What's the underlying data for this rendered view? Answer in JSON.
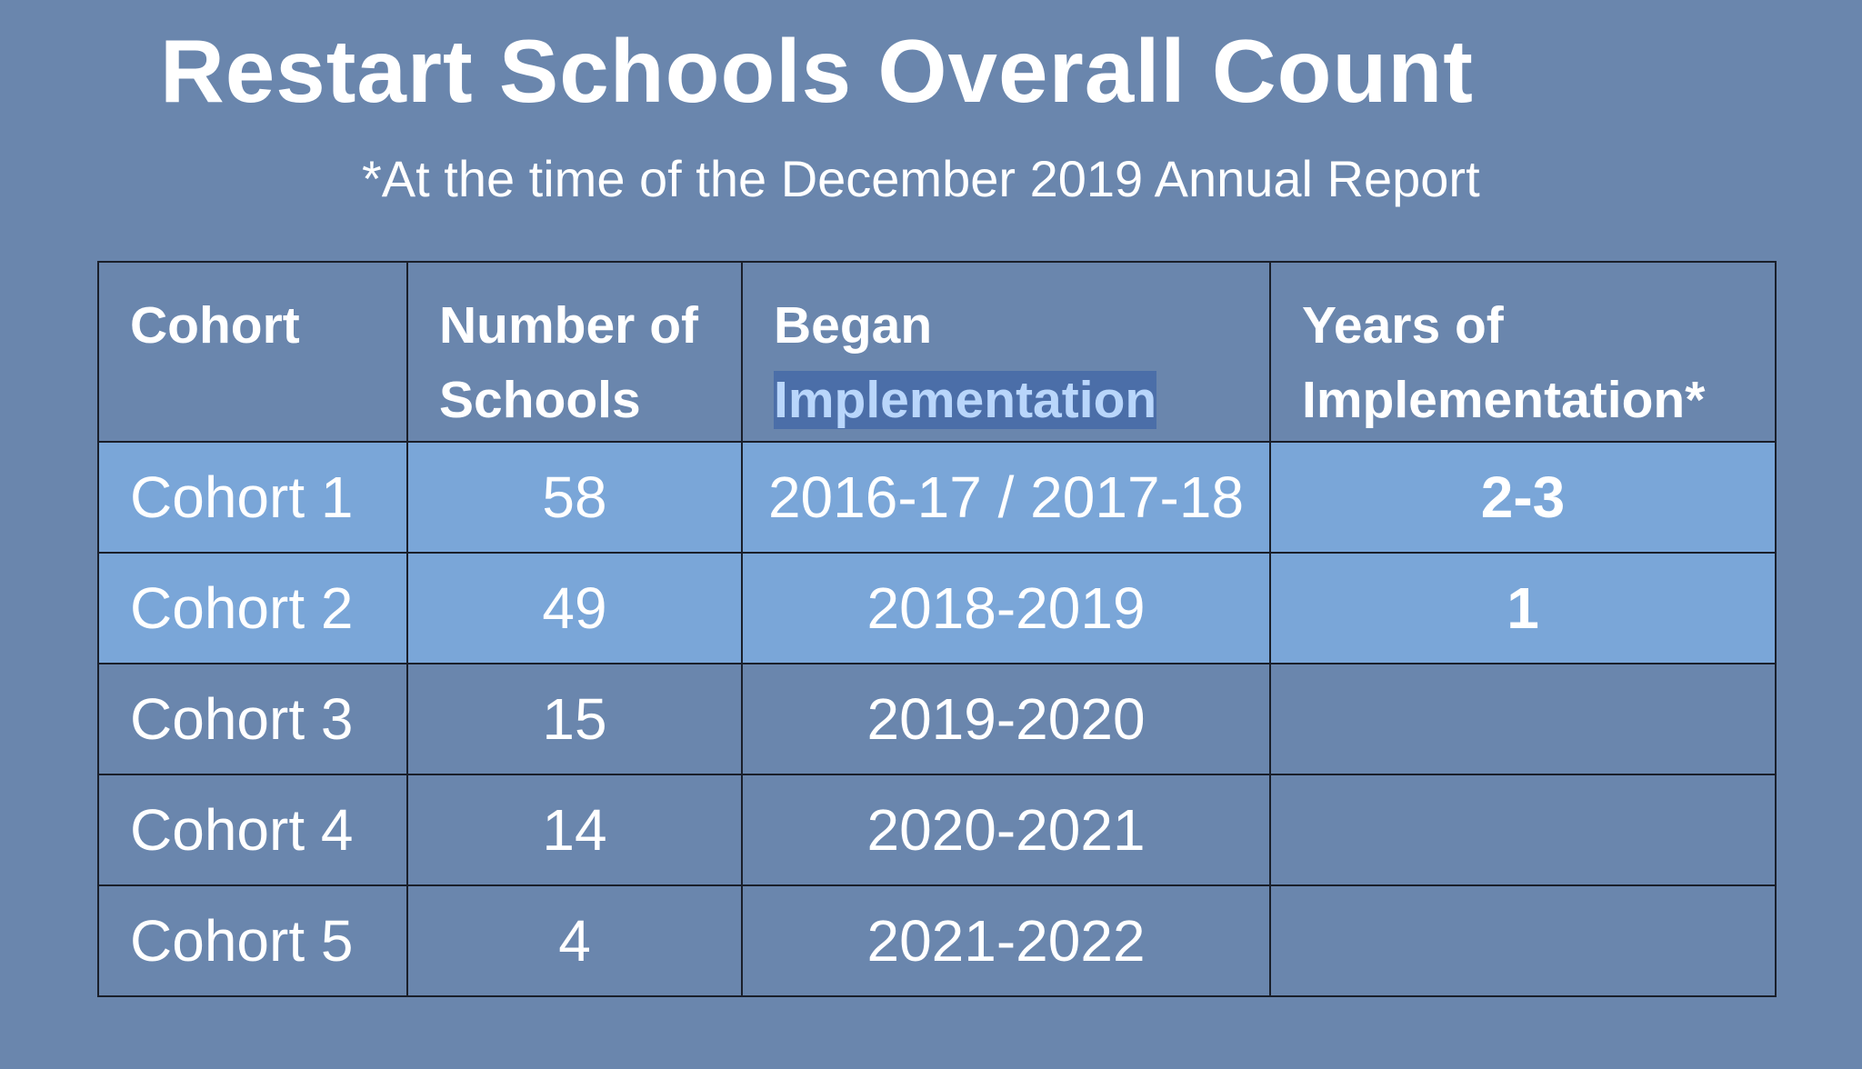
{
  "title": "Restart Schools Overall Count",
  "subtitle": "*At the time of the December 2019 Annual Report",
  "table": {
    "headers": {
      "cohort": "Cohort",
      "schools_1": "Number of",
      "schools_2": "Schools",
      "began_1": "Began",
      "began_2": "Implementation",
      "years_1": "Years of",
      "years_2": "Implementation*"
    },
    "rows": [
      {
        "cohort": "Cohort 1",
        "schools": "58",
        "began": "2016-17 / 2017-18",
        "years": "2-3",
        "highlighted": true
      },
      {
        "cohort": "Cohort 2",
        "schools": "49",
        "began": "2018-2019",
        "years": "1",
        "highlighted": true
      },
      {
        "cohort": "Cohort 3",
        "schools": "15",
        "began": "2019-2020",
        "years": "",
        "highlighted": false
      },
      {
        "cohort": "Cohort 4",
        "schools": "14",
        "began": "2020-2021",
        "years": "",
        "highlighted": false
      },
      {
        "cohort": "Cohort 5",
        "schools": "4",
        "began": "2021-2022",
        "years": "",
        "highlighted": false
      }
    ]
  },
  "colors": {
    "background": "#6a86ad",
    "highlight_row": "#7aa6d8",
    "text_selection": "#4b6ea8"
  }
}
